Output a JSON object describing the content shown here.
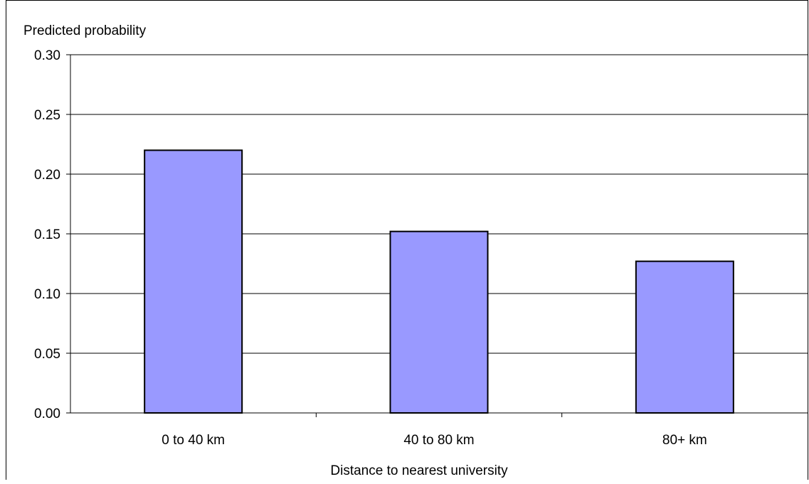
{
  "chart_data": {
    "type": "bar",
    "title": "",
    "ylabel": "Predicted probability",
    "xlabel": "Distance to nearest university",
    "categories": [
      "0 to 40 km",
      "40 to 80 km",
      "80+ km"
    ],
    "values": [
      0.22,
      0.152,
      0.127
    ],
    "ylim": [
      0,
      0.3
    ],
    "yticks": [
      "0.00",
      "0.05",
      "0.10",
      "0.15",
      "0.20",
      "0.25",
      "0.30"
    ],
    "grid": true,
    "legend": "none",
    "bar_color": "#9999ff",
    "bar_edge_color": "#000000"
  }
}
